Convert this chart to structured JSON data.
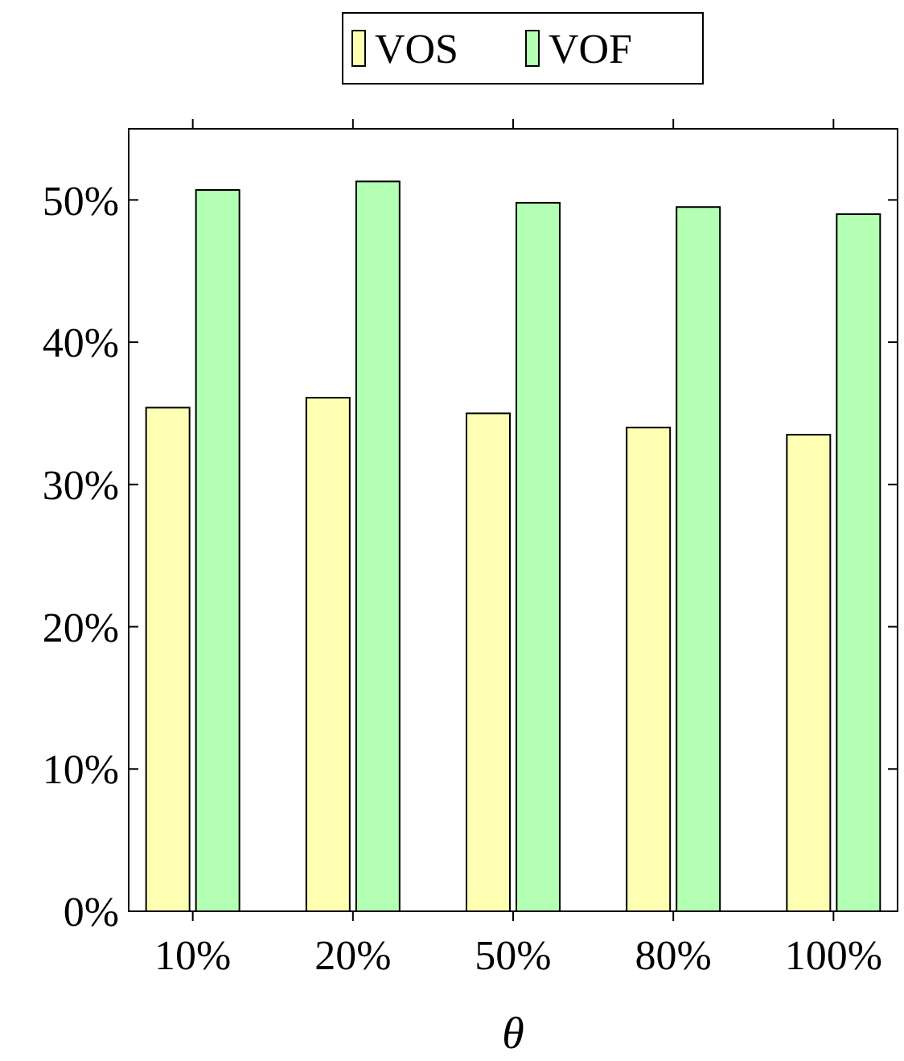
{
  "chart_data": {
    "type": "bar",
    "xlabel": "θ",
    "categories": [
      "10%",
      "20%",
      "50%",
      "80%",
      "100%"
    ],
    "series": [
      {
        "name": "VOS",
        "color": "#ffffb3",
        "values": [
          35.4,
          36.1,
          35.0,
          34.0,
          33.5
        ]
      },
      {
        "name": "VOF",
        "color": "#b3ffb3",
        "values": [
          50.7,
          51.3,
          49.8,
          49.5,
          49.0
        ]
      }
    ],
    "ylim": [
      0,
      55
    ],
    "yticks": [
      {
        "value": 0,
        "label": "0%"
      },
      {
        "value": 10,
        "label": "10%"
      },
      {
        "value": 20,
        "label": "20%"
      },
      {
        "value": 30,
        "label": "30%"
      },
      {
        "value": 40,
        "label": "40%"
      },
      {
        "value": 50,
        "label": "50%"
      }
    ],
    "legend": "top",
    "grid": false
  }
}
